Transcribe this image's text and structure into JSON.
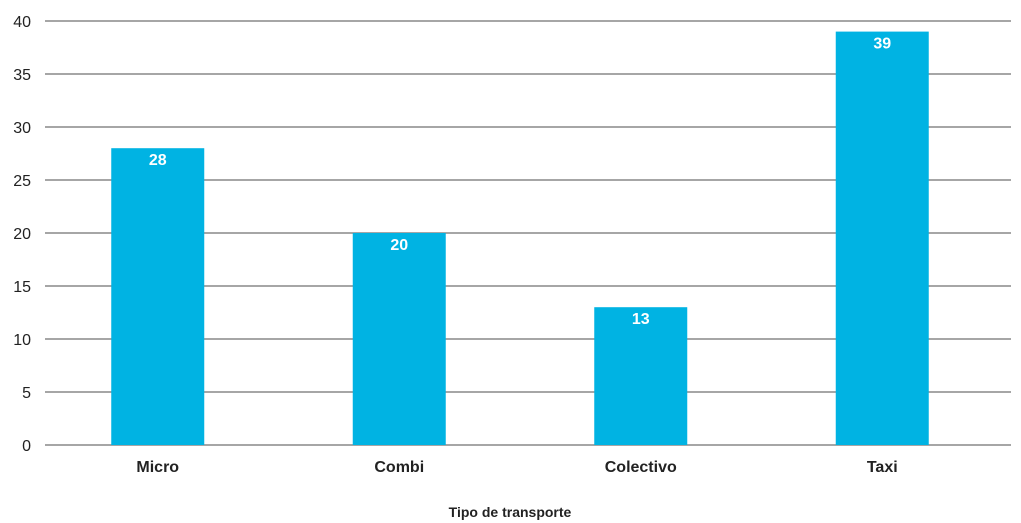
{
  "chart_data": {
    "type": "bar",
    "categories": [
      "Micro",
      "Combi",
      "Colectivo",
      "Taxi"
    ],
    "values": [
      28,
      20,
      13,
      39
    ],
    "data_labels": [
      "28",
      "20",
      "13",
      "39"
    ],
    "title": "",
    "xlabel": "Tipo de transporte",
    "ylabel": "",
    "ylim": [
      0,
      40
    ],
    "yticks": [
      0,
      5,
      10,
      15,
      20,
      25,
      30,
      35,
      40
    ],
    "grid": true,
    "bar_color": "#00b3e3",
    "legend": "none"
  }
}
